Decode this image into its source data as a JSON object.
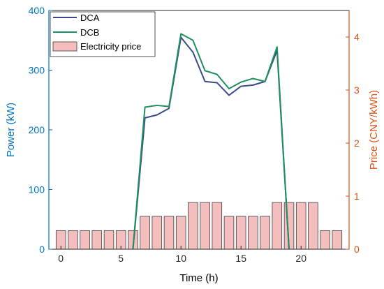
{
  "chart_data": {
    "type": "line",
    "xlabel": "Time (h)",
    "ylabel_left": "Power (kW)",
    "ylabel_right": "Price (CNY/kWh)",
    "xlim": [
      -1,
      24
    ],
    "ylim_left": [
      0,
      400
    ],
    "ylim_right": [
      0,
      4.5
    ],
    "x_ticks": [
      0,
      5,
      10,
      15,
      20
    ],
    "y_ticks_left": [
      0,
      100,
      200,
      300,
      400
    ],
    "y_ticks_right": [
      0,
      1,
      2,
      3,
      4
    ],
    "legend_position": "top-left",
    "grid": false,
    "colors": {
      "left_axis": "#0072BD",
      "right_axis": "#D95319",
      "axis_box": "#262626",
      "bar_fill": "#F4BEBE",
      "bar_edge": "#3a3a3a"
    },
    "bars": {
      "name": "Electricity price",
      "axis": "right",
      "x": [
        0,
        1,
        2,
        3,
        4,
        5,
        6,
        7,
        8,
        9,
        10,
        11,
        12,
        13,
        14,
        15,
        16,
        17,
        18,
        19,
        20,
        21,
        22,
        23
      ],
      "values": [
        0.35,
        0.35,
        0.35,
        0.35,
        0.35,
        0.35,
        0.35,
        0.62,
        0.62,
        0.62,
        0.62,
        0.88,
        0.88,
        0.88,
        0.62,
        0.62,
        0.62,
        0.62,
        0.88,
        0.88,
        0.88,
        0.88,
        0.35,
        0.35
      ]
    },
    "series": [
      {
        "name": "DCA",
        "color": "#3B4A8C",
        "axis": "left",
        "x": [
          6,
          7,
          8,
          9,
          10,
          11,
          12,
          13,
          14,
          15,
          16,
          17,
          18,
          19
        ],
        "values": [
          0,
          220,
          225,
          236,
          355,
          330,
          281,
          279,
          258,
          273,
          275,
          281,
          333,
          0
        ]
      },
      {
        "name": "DCB",
        "color": "#1E8F5E",
        "axis": "left",
        "x": [
          6,
          7,
          8,
          9,
          10,
          11,
          12,
          13,
          14,
          15,
          16,
          17,
          18,
          19
        ],
        "values": [
          0,
          238,
          241,
          239,
          361,
          350,
          299,
          293,
          269,
          280,
          286,
          281,
          339,
          0
        ]
      }
    ]
  }
}
